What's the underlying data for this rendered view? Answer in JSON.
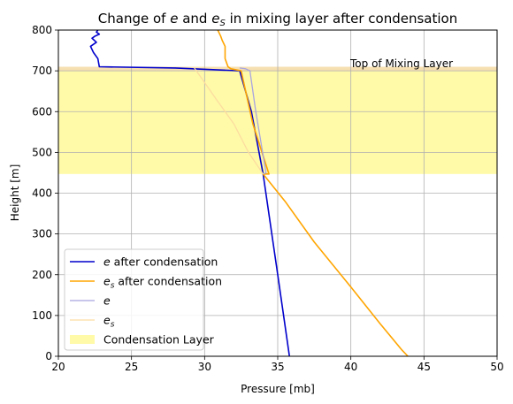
{
  "chart_data": {
    "type": "line",
    "title": "Change of e and e_s in mixing layer after condensation",
    "xlabel": "Pressure [mb]",
    "ylabel": "Height [m]",
    "xlim": [
      20,
      50
    ],
    "ylim": [
      0,
      800
    ],
    "xticks": [
      "20",
      "25",
      "30",
      "35",
      "40",
      "45",
      "50"
    ],
    "yticks": [
      "0",
      "100",
      "200",
      "300",
      "400",
      "500",
      "600",
      "700",
      "800"
    ],
    "grid": true,
    "legend_position": "lower-left",
    "annotation": "Top of Mixing Layer",
    "shaded_band": {
      "label": "Condensation Layer",
      "y_from": 447,
      "y_to": 707,
      "color": "#fffaa8"
    },
    "top_band": {
      "y_from": 700,
      "y_to": 710,
      "color": "#f6dfb0"
    },
    "series": [
      {
        "name": "e after condensation",
        "color": "#0000cc",
        "x": [
          35.8,
          35.0,
          34.0,
          33.2,
          32.4,
          28.0,
          22.8,
          22.7,
          22.4,
          22.2,
          22.6,
          22.3,
          22.5,
          22.8,
          22.6,
          22.7
        ],
        "y": [
          0,
          200,
          447,
          600,
          700,
          707,
          710,
          730,
          745,
          760,
          770,
          780,
          785,
          790,
          795,
          800
        ]
      },
      {
        "name": "e_s after condensation",
        "color": "#ffa500",
        "x": [
          43.9,
          43.5,
          42.0,
          40.0,
          37.5,
          35.5,
          34.0,
          34.4,
          33.3,
          32.5,
          31.8,
          31.6,
          31.4,
          31.4,
          31.2,
          31.1,
          30.9
        ],
        "y": [
          0,
          15,
          80,
          170,
          280,
          380,
          447,
          447,
          570,
          700,
          705,
          710,
          730,
          760,
          775,
          785,
          800
        ]
      },
      {
        "name": "e",
        "color": "#a9a5e0",
        "x": [
          34.0,
          34.2,
          33.5,
          33.1,
          32.8,
          32.4
        ],
        "y": [
          447,
          450,
          600,
          700,
          705,
          707
        ]
      },
      {
        "name": "e_s",
        "color": "#fcdca0",
        "x": [
          34.0,
          33.0,
          32.0,
          30.8,
          29.3
        ],
        "y": [
          447,
          500,
          570,
          630,
          707
        ]
      }
    ]
  }
}
